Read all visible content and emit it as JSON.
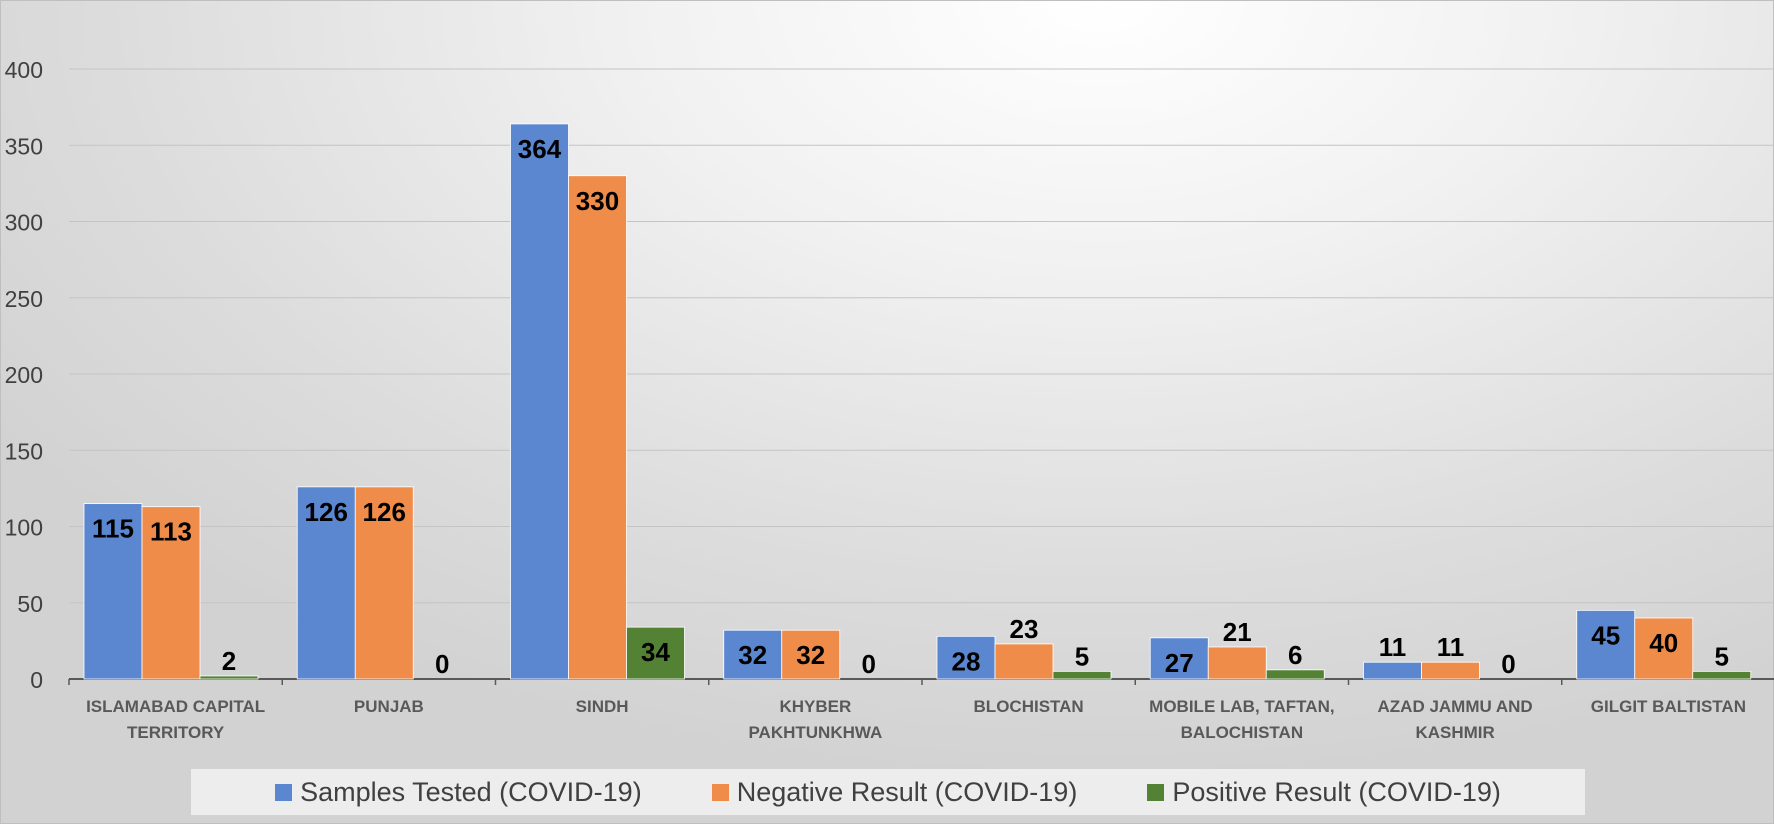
{
  "chart_data": {
    "type": "bar",
    "categories": [
      [
        "ISLAMABAD CAPITAL",
        "TERRITORY"
      ],
      [
        "PUNJAB"
      ],
      [
        "SINDH"
      ],
      [
        "KHYBER",
        "PAKHTUNKHWA"
      ],
      [
        "BLOCHISTAN"
      ],
      [
        "MOBILE LAB, TAFTAN,",
        "BALOCHISTAN"
      ],
      [
        "AZAD JAMMU AND",
        "KASHMIR"
      ],
      [
        "GILGIT BALTISTAN"
      ]
    ],
    "series": [
      {
        "name": "Samples Tested (COVID-19)",
        "color": "#5B87D0",
        "values": [
          115,
          126,
          364,
          32,
          28,
          27,
          11,
          45
        ]
      },
      {
        "name": "Negative Result (COVID-19)",
        "color": "#EF8C4A",
        "values": [
          113,
          126,
          330,
          32,
          23,
          21,
          11,
          40
        ]
      },
      {
        "name": "Positive Result (COVID-19)",
        "color": "#548235",
        "values": [
          2,
          0,
          34,
          0,
          5,
          6,
          0,
          5
        ]
      }
    ],
    "ylim": [
      0,
      400
    ],
    "yticks": [
      0,
      50,
      100,
      150,
      200,
      250,
      300,
      350,
      400
    ],
    "grid": true,
    "legend_position": "bottom"
  }
}
